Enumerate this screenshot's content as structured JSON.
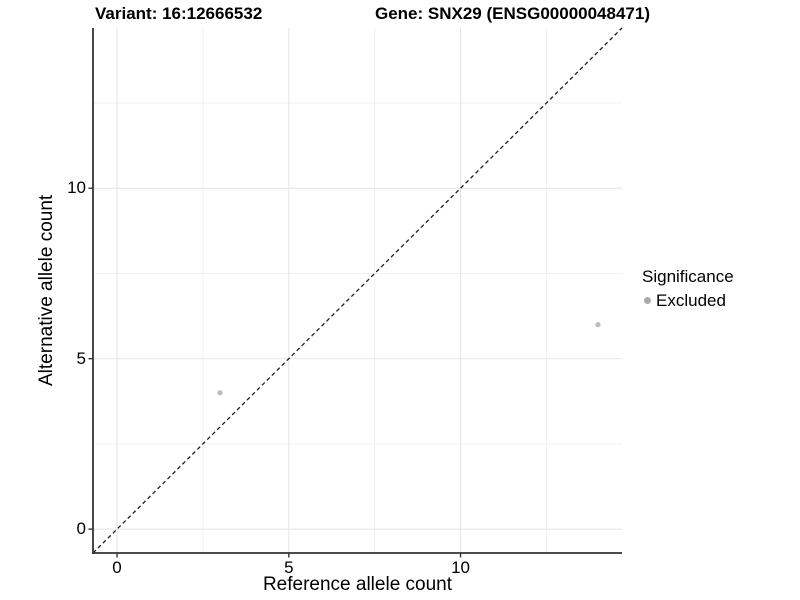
{
  "chart_data": {
    "type": "scatter",
    "title_left": "Variant: 16:12666532",
    "title_right": "Gene: SNX29 (ENSG00000048471)",
    "xlabel": "Reference allele count",
    "ylabel": "Alternative allele count",
    "xlim": [
      -0.7,
      14.7
    ],
    "ylim": [
      -0.7,
      14.7
    ],
    "x_ticks": {
      "values": [
        0,
        5,
        10
      ],
      "labels": [
        "0",
        "5",
        "10"
      ]
    },
    "y_ticks": {
      "values": [
        0,
        5,
        10
      ],
      "labels": [
        "0",
        "5",
        "10"
      ]
    },
    "x_minor_gridlines": [
      2.5,
      7.5,
      12.5
    ],
    "y_minor_gridlines": [
      2.5,
      7.5,
      12.5
    ],
    "grid": "major+minor",
    "identity_line": {
      "style": "dashed",
      "color": "#1f1f1f",
      "from": [
        -0.7,
        -0.7
      ],
      "to": [
        14.7,
        14.7
      ]
    },
    "series": [
      {
        "name": "Excluded",
        "color": "#bdbdbd",
        "points": [
          {
            "x": 3,
            "y": 4
          },
          {
            "x": 14,
            "y": 6
          }
        ]
      }
    ],
    "legend": {
      "title": "Significance",
      "position": "right",
      "entries": [
        {
          "label": "Excluded",
          "color": "#aaaaaa"
        }
      ]
    }
  },
  "colors": {
    "background": "#ffffff",
    "grid_major": "#e4e4e4",
    "grid_minor": "#f0f0f0",
    "axis_line": "#333333",
    "tick_mark": "#333333",
    "text": "#000000"
  }
}
